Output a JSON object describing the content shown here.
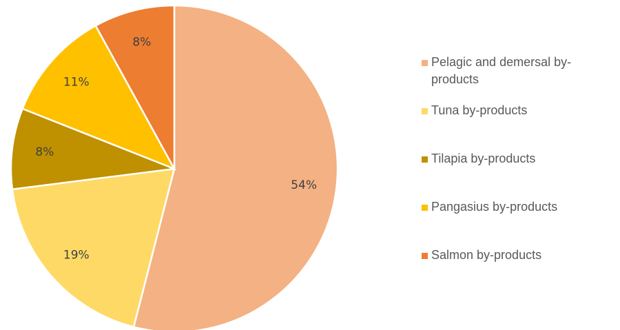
{
  "chart_data": {
    "type": "pie",
    "categories": [
      "Pelagic and demersal by-products",
      "Tuna by-products",
      "Tilapia by-products",
      "Pangasius by-products",
      "Salmon by-products"
    ],
    "values": [
      54,
      19,
      8,
      11,
      8
    ],
    "value_labels": [
      "54%",
      "19%",
      "8%",
      "11%",
      "8%"
    ],
    "colors": [
      "#F4B183",
      "#FFD966",
      "#BF9000",
      "#FFC000",
      "#ED7D31"
    ],
    "legend": "right"
  }
}
